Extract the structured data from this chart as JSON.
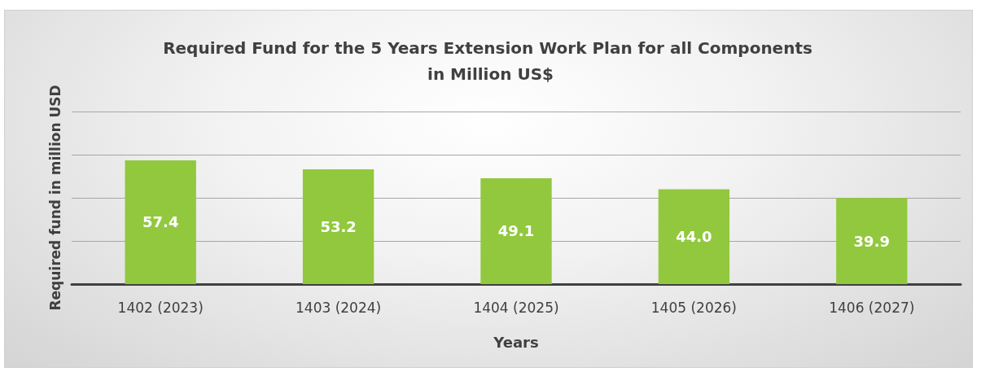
{
  "chart_data": {
    "type": "bar",
    "title": "Required Fund for the 5 Years Extension Work Plan for all Components in Million US$",
    "xlabel": "Years",
    "ylabel": "Required fund in million USD",
    "categories": [
      "1402 (2023)",
      "1403 (2024)",
      "1404 (2025)",
      "1405 (2026)",
      "1406 (2027)"
    ],
    "values": [
      57.4,
      53.2,
      49.1,
      44.0,
      39.9
    ],
    "color": "#92c83e",
    "ylim": [
      0,
      80
    ],
    "yticks": [
      {
        "value": 0,
        "label": null
      },
      {
        "value": 20,
        "label": null
      },
      {
        "value": 40,
        "label": null
      },
      {
        "value": 60,
        "label": null
      },
      {
        "value": 80,
        "label": null
      }
    ],
    "value_labels": [
      "57.4",
      "53.2",
      "49.1",
      "44.0",
      "39.9"
    ],
    "grid": "y",
    "tick_labels": "x"
  }
}
